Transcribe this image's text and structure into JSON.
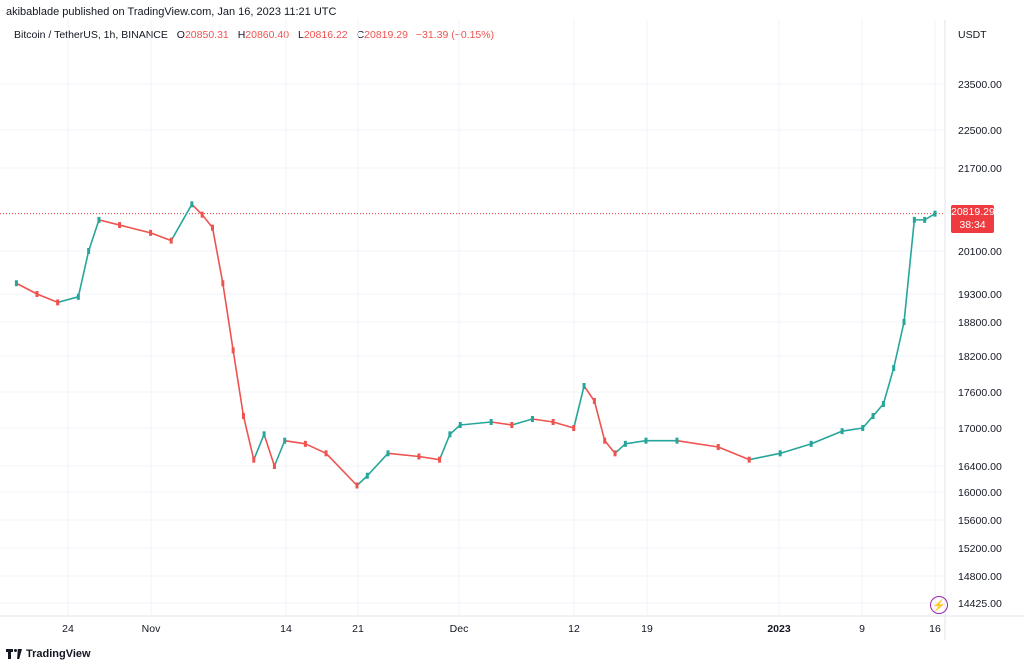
{
  "header": {
    "published": "akibablade published on TradingView.com, Jan 16, 2023 11:21 UTC"
  },
  "legend": {
    "symbol": "Bitcoin / TetherUS, 1h, BINANCE",
    "o_label": "O",
    "o_value": "20850.31",
    "h_label": "H",
    "h_value": "20860.40",
    "l_label": "L",
    "l_value": "20816.22",
    "c_label": "C",
    "c_value": "20819.29",
    "change": "−31.39 (−0.15%)"
  },
  "axis": {
    "currency": "USDT"
  },
  "price_tag": {
    "price": "20819.29",
    "countdown": "38:34"
  },
  "footer": {
    "brand": "TradingView"
  },
  "colors": {
    "up": "#26a69a",
    "down": "#ef5350",
    "last_price": "#ef3b3f"
  },
  "chart_data": {
    "type": "line",
    "title": "Bitcoin / TetherUS, 1h, BINANCE",
    "y_ticks": [
      "23500.00",
      "22500.00",
      "21700.00",
      "20100.00",
      "19300.00",
      "18800.00",
      "18200.00",
      "17600.00",
      "17000.00",
      "16400.00",
      "16000.00",
      "15600.00",
      "15200.00",
      "14800.00",
      "14425.00"
    ],
    "x_ticks": [
      {
        "label": "24",
        "bold": false
      },
      {
        "label": "Nov",
        "bold": false
      },
      {
        "label": "14",
        "bold": false
      },
      {
        "label": "21",
        "bold": false
      },
      {
        "label": "Dec",
        "bold": false
      },
      {
        "label": "12",
        "bold": false
      },
      {
        "label": "19",
        "bold": false
      },
      {
        "label": "2023",
        "bold": true
      },
      {
        "label": "9",
        "bold": false
      },
      {
        "label": "16",
        "bold": false
      }
    ],
    "series": [
      {
        "x": [
          "Oct 19",
          "Oct 21",
          "Oct 23",
          "Oct 25",
          "Oct 26",
          "Oct 27",
          "Oct 29",
          "Nov 1",
          "Nov 3",
          "Nov 5",
          "Nov 6",
          "Nov 7",
          "Nov 8",
          "Nov 9",
          "Nov 10",
          "Nov 11",
          "Nov 12",
          "Nov 13",
          "Nov 14",
          "Nov 16",
          "Nov 18",
          "Nov 21",
          "Nov 22",
          "Nov 24",
          "Nov 27",
          "Nov 29",
          "Nov 30",
          "Dec 1",
          "Dec 4",
          "Dec 6",
          "Dec 8",
          "Dec 10",
          "Dec 12",
          "Dec 13",
          "Dec 14",
          "Dec 15",
          "Dec 16",
          "Dec 17",
          "Dec 19",
          "Dec 22",
          "Dec 26",
          "Dec 29",
          "Jan 1",
          "Jan 4",
          "Jan 7",
          "Jan 9",
          "Jan 10",
          "Jan 11",
          "Jan 12",
          "Jan 13",
          "Jan 14",
          "Jan 15",
          "Jan 16"
        ],
        "y": [
          19500,
          19300,
          19150,
          19250,
          20100,
          20700,
          20600,
          20450,
          20300,
          21000,
          20800,
          20550,
          19500,
          18300,
          17200,
          16500,
          16900,
          16400,
          16800,
          16750,
          16600,
          16100,
          16250,
          16600,
          16550,
          16500,
          16900,
          17050,
          17100,
          17050,
          17150,
          17100,
          17000,
          17700,
          17450,
          16800,
          16600,
          16750,
          16800,
          16800,
          16700,
          16500,
          16600,
          16750,
          16950,
          17000,
          17200,
          17400,
          18000,
          18800,
          20700,
          20700,
          20819.29
        ],
        "last": 20819.29
      }
    ]
  }
}
